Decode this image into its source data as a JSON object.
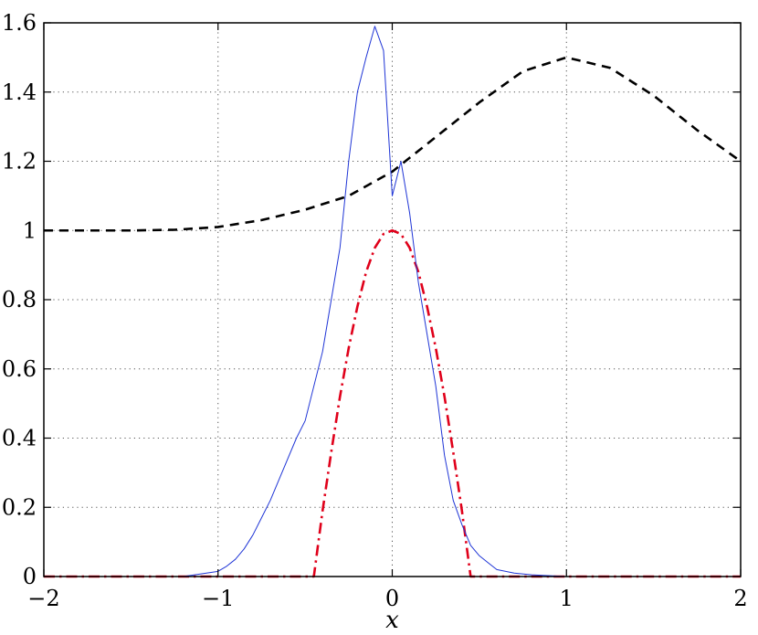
{
  "chart_data": {
    "type": "line",
    "title": "",
    "xlabel": "x",
    "ylabel": "",
    "xlim": [
      -2,
      2
    ],
    "ylim": [
      0,
      1.6
    ],
    "grid": true,
    "grid_style": "dotted",
    "xticks": [
      -2,
      -1,
      0,
      1,
      2
    ],
    "xtick_labels": [
      "−2",
      "−1",
      "0",
      "1",
      "2"
    ],
    "yticks": [
      0,
      0.2,
      0.4,
      0.6,
      0.8,
      1,
      1.2,
      1.4,
      1.6
    ],
    "ytick_labels": [
      "0",
      "0.2",
      "0.4",
      "0.6",
      "0.8",
      "1",
      "1.2",
      "1.4",
      "1.6"
    ],
    "series": [
      {
        "style": "dashed",
        "color": "#000000",
        "x": [
          -2,
          -1.75,
          -1.5,
          -1.25,
          -1,
          -0.75,
          -0.5,
          -0.25,
          0,
          0.25,
          0.5,
          0.75,
          1,
          1.25,
          1.5,
          1.75,
          2
        ],
        "y": [
          1.0,
          1.0,
          1.0,
          1.002,
          1.01,
          1.03,
          1.06,
          1.1,
          1.17,
          1.27,
          1.37,
          1.46,
          1.5,
          1.47,
          1.39,
          1.29,
          1.2
        ]
      },
      {
        "style": "dash-dot",
        "color": "#e0001a",
        "x": [
          -2,
          -0.45,
          -0.4,
          -0.35,
          -0.3,
          -0.25,
          -0.2,
          -0.15,
          -0.1,
          -0.05,
          0,
          0.05,
          0.1,
          0.15,
          0.2,
          0.25,
          0.3,
          0.35,
          0.4,
          0.45,
          2
        ],
        "y": [
          0,
          0,
          0.19,
          0.36,
          0.52,
          0.66,
          0.78,
          0.88,
          0.95,
          0.99,
          1.0,
          0.99,
          0.95,
          0.88,
          0.78,
          0.66,
          0.52,
          0.36,
          0.19,
          0,
          0
        ]
      },
      {
        "style": "solid",
        "color": "#1f35d6",
        "x": [
          -2,
          -1.5,
          -1.2,
          -1.0,
          -0.95,
          -0.9,
          -0.85,
          -0.8,
          -0.75,
          -0.7,
          -0.65,
          -0.6,
          -0.55,
          -0.5,
          -0.45,
          -0.4,
          -0.35,
          -0.3,
          -0.25,
          -0.2,
          -0.15,
          -0.1,
          -0.05,
          0,
          0.05,
          0.1,
          0.15,
          0.2,
          0.25,
          0.3,
          0.35,
          0.4,
          0.45,
          0.5,
          0.55,
          0.6,
          0.7,
          0.8,
          1.0,
          2
        ],
        "y": [
          0,
          0,
          0,
          0.015,
          0.03,
          0.05,
          0.08,
          0.12,
          0.17,
          0.22,
          0.28,
          0.34,
          0.4,
          0.45,
          0.55,
          0.65,
          0.8,
          0.95,
          1.2,
          1.4,
          1.5,
          1.59,
          1.52,
          1.1,
          1.2,
          1.05,
          0.85,
          0.7,
          0.55,
          0.35,
          0.22,
          0.15,
          0.09,
          0.06,
          0.04,
          0.02,
          0.01,
          0.005,
          0,
          0
        ]
      }
    ]
  }
}
